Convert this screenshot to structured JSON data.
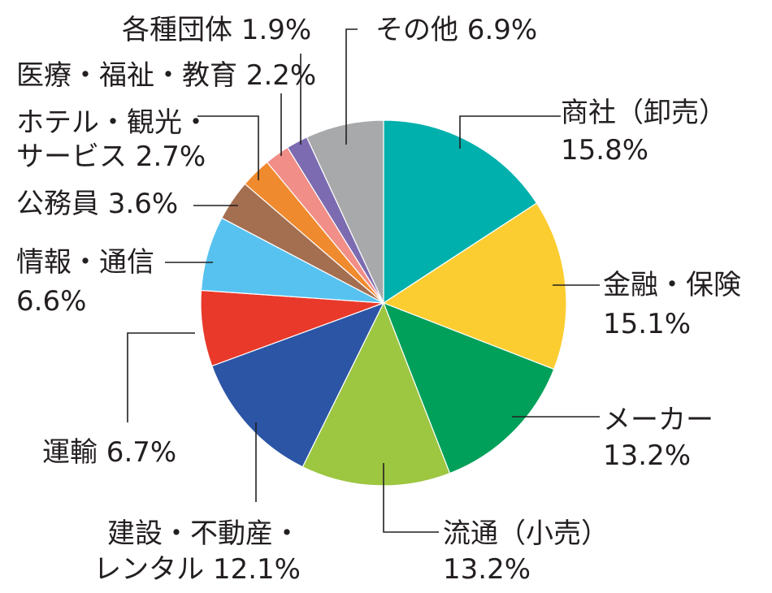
{
  "chart_data": {
    "type": "pie",
    "title": "",
    "start": "12-o'clock",
    "direction": "clockwise",
    "slices": [
      {
        "label_lines": [
          "商社（卸売）",
          "15.8%"
        ],
        "category": "商社（卸売）",
        "value": 15.8,
        "value_label": "15.8%",
        "color": "#00b0ac"
      },
      {
        "label_lines": [
          "金融・保険",
          "15.1%"
        ],
        "category": "金融・保険",
        "value": 15.1,
        "value_label": "15.1%",
        "color": "#fccd31"
      },
      {
        "label_lines": [
          "メーカー",
          "13.2%"
        ],
        "category": "メーカー",
        "value": 13.2,
        "value_label": "13.2%",
        "color": "#00a05a"
      },
      {
        "label_lines": [
          "流通（小売）",
          "13.2%"
        ],
        "category": "流通（小売）",
        "value": 13.2,
        "value_label": "13.2%",
        "color": "#9dc641"
      },
      {
        "label_lines": [
          "建設・不動産・",
          "レンタル 12.1%"
        ],
        "category": "建設・不動産・レンタル",
        "value": 12.1,
        "value_label": "12.1%",
        "color": "#2c55a5"
      },
      {
        "label_lines": [
          "運輸 6.7%"
        ],
        "category": "運輸",
        "value": 6.7,
        "value_label": "6.7%",
        "color": "#e8392b"
      },
      {
        "label_lines": [
          "情報・通信",
          "6.6%"
        ],
        "category": "情報・通信",
        "value": 6.6,
        "value_label": "6.6%",
        "color": "#57c2f0"
      },
      {
        "label_lines": [
          "公務員 3.6%"
        ],
        "category": "公務員",
        "value": 3.6,
        "value_label": "3.6%",
        "color": "#a46e50"
      },
      {
        "label_lines": [
          "ホテル・観光・",
          "サービス 2.7%"
        ],
        "category": "ホテル・観光・サービス",
        "value": 2.7,
        "value_label": "2.7%",
        "color": "#f08a2e"
      },
      {
        "label_lines": [
          "医療・福祉・教育 2.2%"
        ],
        "category": "医療・福祉・教育",
        "value": 2.2,
        "value_label": "2.2%",
        "color": "#f18e87"
      },
      {
        "label_lines": [
          "各種団体 1.9%"
        ],
        "category": "各種団体",
        "value": 1.9,
        "value_label": "1.9%",
        "color": "#7c6bb0"
      },
      {
        "label_lines": [
          "その他 6.9%"
        ],
        "category": "その他",
        "value": 6.9,
        "value_label": "6.9%",
        "color": "#a7a9ab"
      }
    ]
  }
}
